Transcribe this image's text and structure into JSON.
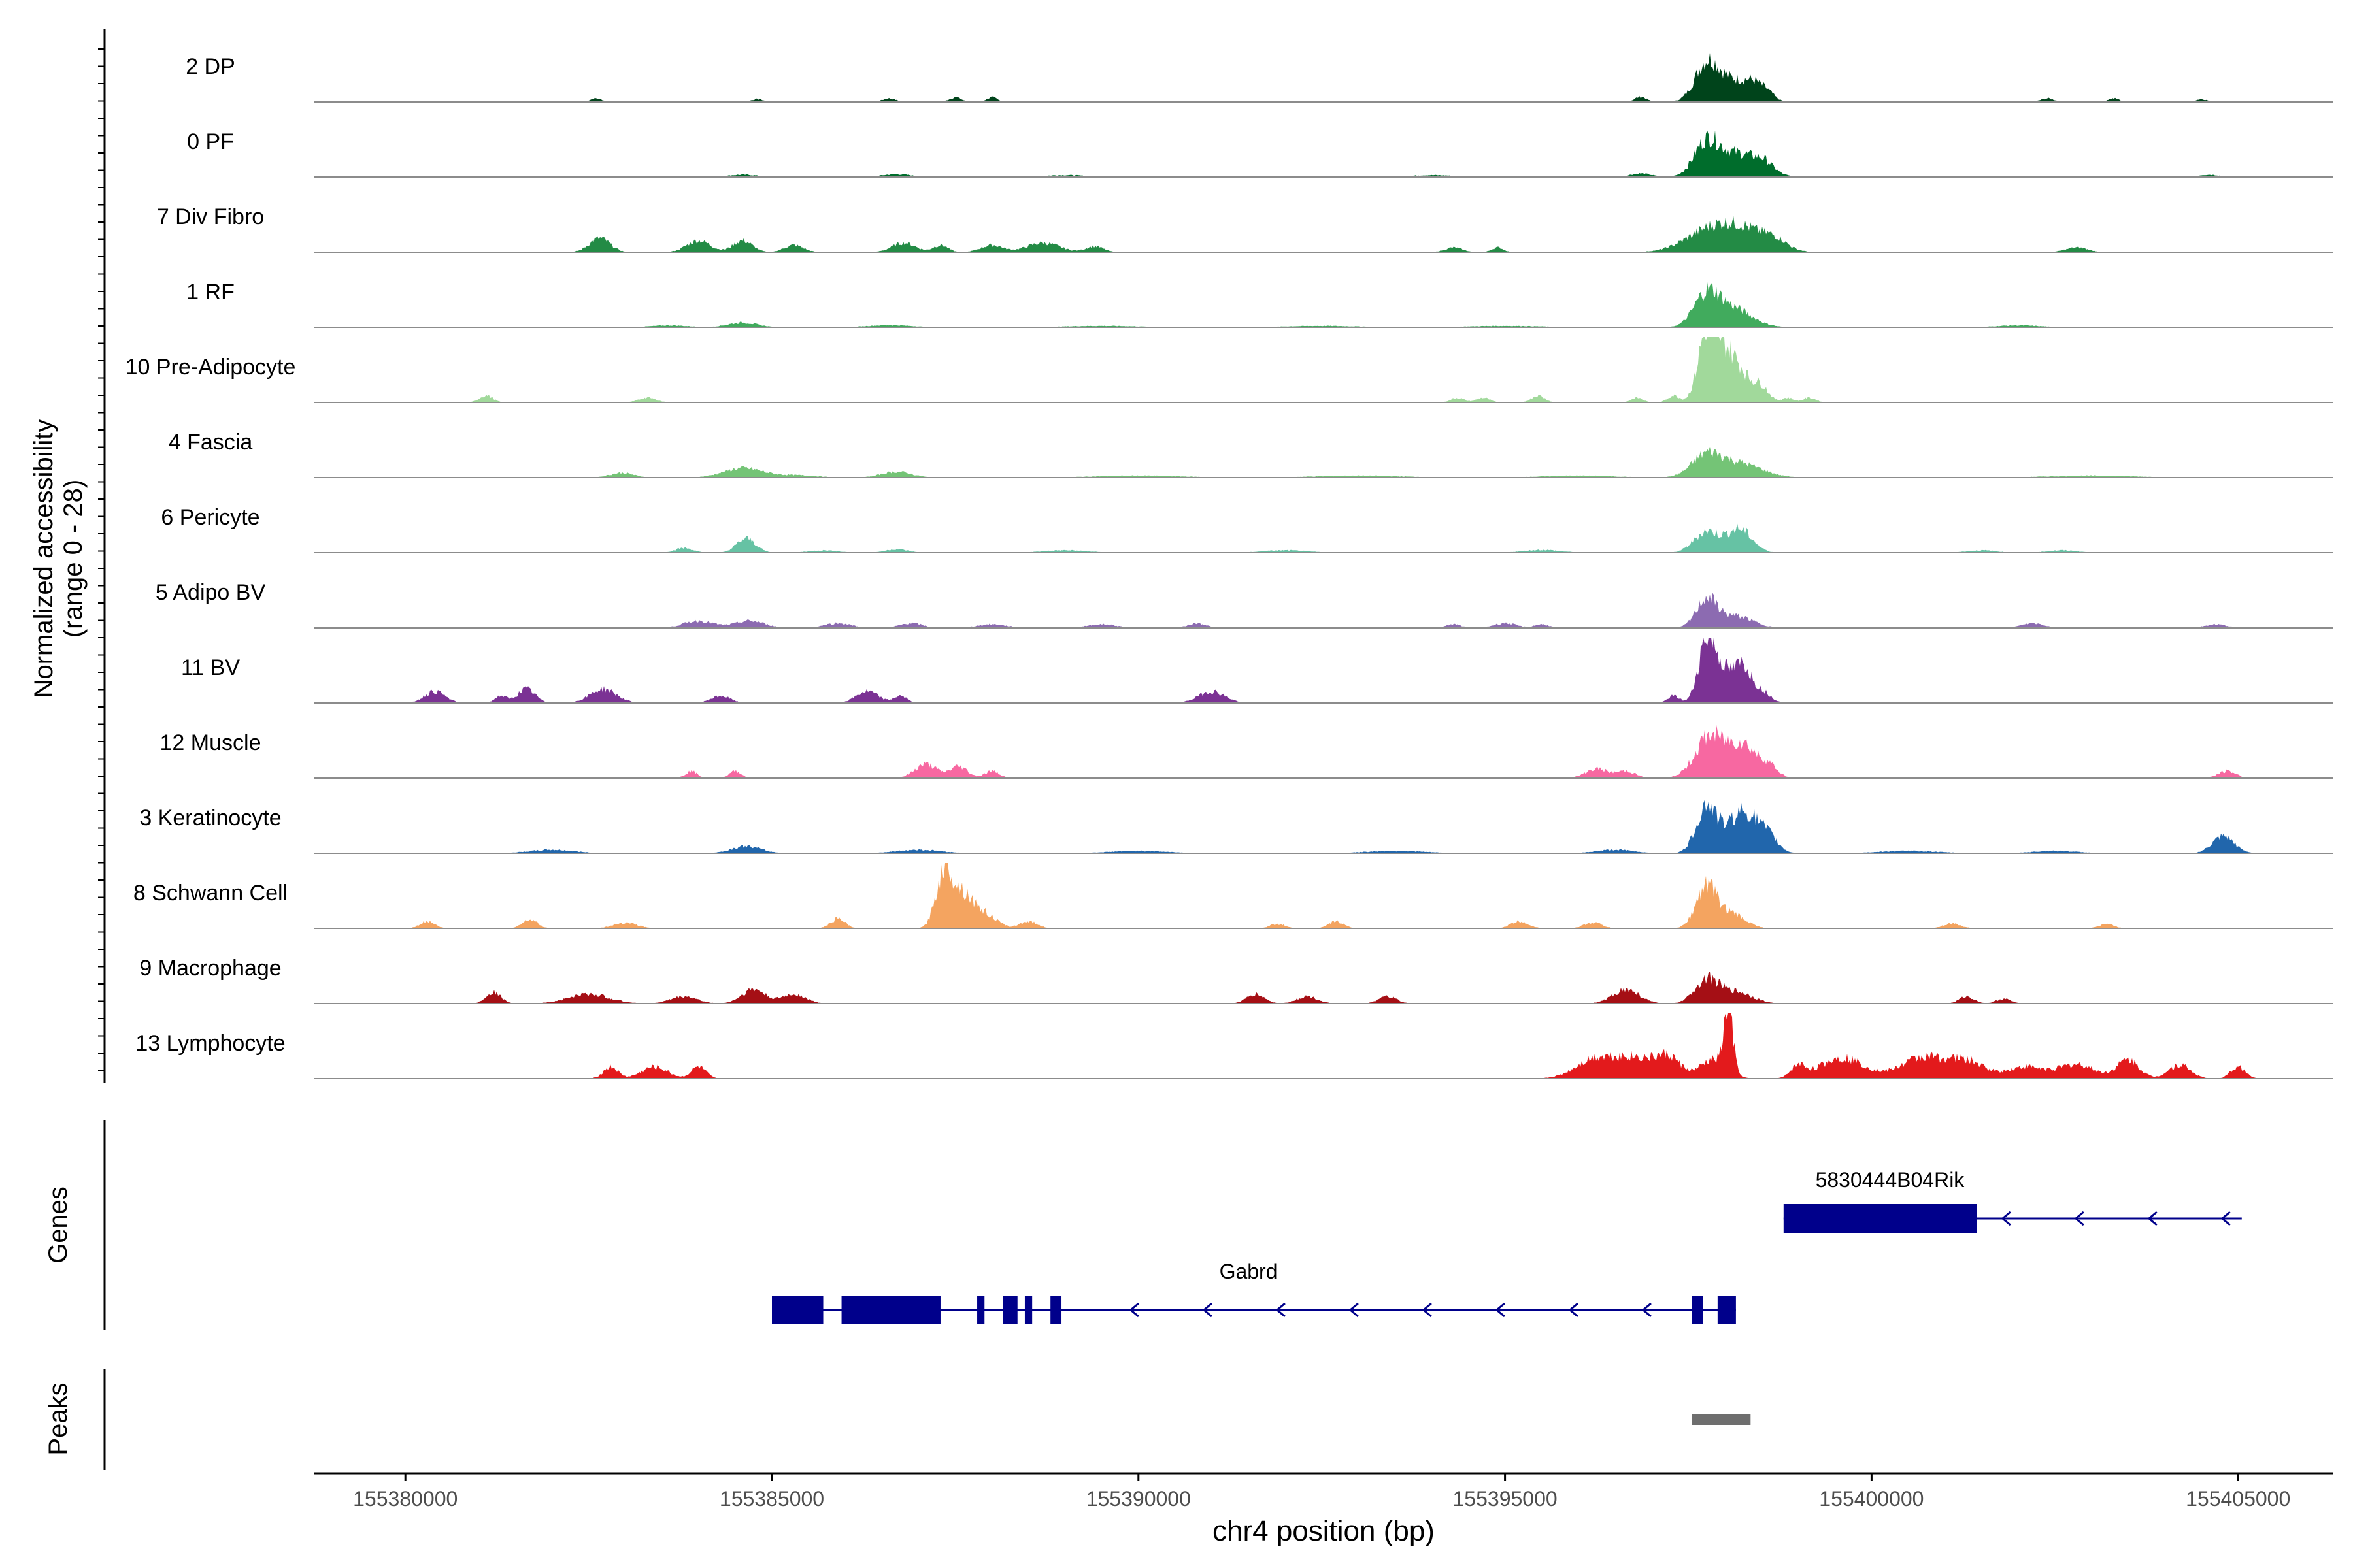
{
  "chart_data": {
    "type": "area",
    "title": "",
    "ylabel": "Normalized accessibility",
    "ylabel_sub": "(range 0 - 28)",
    "xlabel": "chr4 position (bp)",
    "xlim": [
      155378750,
      155406300
    ],
    "ylim": [
      0,
      28
    ],
    "x_ticks": [
      "155380000",
      "155385000",
      "155390000",
      "155395000",
      "155400000",
      "155405000"
    ],
    "x_tick_values": [
      155380000,
      155385000,
      155390000,
      155395000,
      155400000,
      155405000
    ],
    "tracks": [
      {
        "name": "2 DP",
        "color": "#00441b",
        "peaks": [
          [
            155397750,
            15,
            160
          ],
          [
            155398130,
            9,
            260
          ],
          [
            155398420,
            4,
            120
          ],
          [
            155398600,
            2,
            80
          ],
          [
            155382600,
            1.5,
            80
          ],
          [
            155384800,
            1.2,
            80
          ],
          [
            155386600,
            1.5,
            90
          ],
          [
            155387500,
            2,
            80
          ],
          [
            155388000,
            2,
            70
          ],
          [
            155396850,
            2.2,
            80
          ],
          [
            155402400,
            1.5,
            90
          ],
          [
            155403300,
            1.5,
            80
          ],
          [
            155404500,
            1.2,
            80
          ]
        ]
      },
      {
        "name": "0 PF",
        "color": "#006d2c",
        "peaks": [
          [
            155397750,
            14,
            170
          ],
          [
            155398200,
            10,
            280
          ],
          [
            155398550,
            3,
            120
          ],
          [
            155384600,
            1,
            200
          ],
          [
            155386700,
            1.2,
            200
          ],
          [
            155389000,
            0.8,
            300
          ],
          [
            155394000,
            0.8,
            300
          ],
          [
            155396850,
            1.5,
            150
          ],
          [
            155404600,
            1,
            150
          ]
        ]
      },
      {
        "name": "7 Div Fibro",
        "color": "#238b45",
        "peaks": [
          [
            155382650,
            6,
            140
          ],
          [
            155384000,
            5,
            160
          ],
          [
            155384600,
            5,
            130
          ],
          [
            155385300,
            3,
            130
          ],
          [
            155386800,
            4,
            160
          ],
          [
            155387300,
            3,
            100
          ],
          [
            155388000,
            3,
            150
          ],
          [
            155388700,
            4,
            220
          ],
          [
            155389400,
            2.5,
            120
          ],
          [
            155394300,
            2,
            120
          ],
          [
            155394900,
            2,
            80
          ],
          [
            155397800,
            9,
            340
          ],
          [
            155398300,
            8,
            320
          ],
          [
            155398700,
            3,
            150
          ],
          [
            155402800,
            2,
            150
          ]
        ]
      },
      {
        "name": "1 RF",
        "color": "#41ab5d",
        "peaks": [
          [
            155397750,
            13,
            170
          ],
          [
            155398100,
            8,
            260
          ],
          [
            155384600,
            2,
            200
          ],
          [
            155383600,
            0.8,
            250
          ],
          [
            155386600,
            0.9,
            300
          ],
          [
            155389500,
            0.6,
            500
          ],
          [
            155392500,
            0.6,
            500
          ],
          [
            155395000,
            0.6,
            500
          ],
          [
            155402000,
            0.8,
            300
          ]
        ]
      },
      {
        "name": "10 Pre-Adipocyte",
        "color": "#a1d99b",
        "peaks": [
          [
            155397750,
            26,
            120
          ],
          [
            155397950,
            18,
            150
          ],
          [
            155398200,
            12,
            160
          ],
          [
            155398500,
            6,
            100
          ],
          [
            155381100,
            3,
            90
          ],
          [
            155383300,
            2,
            120
          ],
          [
            155394350,
            2,
            90
          ],
          [
            155394700,
            2,
            90
          ],
          [
            155395450,
            3,
            90
          ],
          [
            155396800,
            2,
            80
          ],
          [
            155397300,
            3,
            80
          ],
          [
            155398850,
            2,
            80
          ],
          [
            155399150,
            2,
            90
          ]
        ]
      },
      {
        "name": "4 Fascia",
        "color": "#74c476",
        "peaks": [
          [
            155397750,
            9,
            200
          ],
          [
            155398200,
            6,
            300
          ],
          [
            155384600,
            4,
            260
          ],
          [
            155382950,
            2,
            160
          ],
          [
            155386700,
            2.5,
            200
          ],
          [
            155385300,
            1,
            300
          ],
          [
            155390000,
            0.8,
            600
          ],
          [
            155393000,
            0.8,
            600
          ],
          [
            155396000,
            0.8,
            500
          ],
          [
            155403000,
            0.8,
            600
          ]
        ]
      },
      {
        "name": "6 Pericyte",
        "color": "#66c2a4",
        "peaks": [
          [
            155397750,
            9,
            170
          ],
          [
            155398200,
            10,
            170
          ],
          [
            155384650,
            6,
            130
          ],
          [
            155383800,
            2,
            120
          ],
          [
            155386700,
            1.5,
            150
          ],
          [
            155385700,
            1,
            200
          ],
          [
            155389000,
            1,
            300
          ],
          [
            155392000,
            1,
            300
          ],
          [
            155395500,
            1.2,
            250
          ],
          [
            155401500,
            1,
            200
          ],
          [
            155402600,
            1,
            200
          ]
        ]
      },
      {
        "name": "5 Adipo BV",
        "color": "#8c6bb1",
        "peaks": [
          [
            155397750,
            12,
            140
          ],
          [
            155398150,
            5,
            230
          ],
          [
            155384000,
            3,
            200
          ],
          [
            155384700,
            3,
            200
          ],
          [
            155385900,
            2,
            180
          ],
          [
            155386900,
            2,
            150
          ],
          [
            155388000,
            1.5,
            200
          ],
          [
            155389500,
            1.5,
            200
          ],
          [
            155390800,
            2,
            120
          ],
          [
            155394300,
            1.5,
            100
          ],
          [
            155395000,
            2,
            150
          ],
          [
            155395500,
            1.5,
            100
          ],
          [
            155402200,
            2,
            150
          ],
          [
            155404700,
            1.5,
            150
          ]
        ]
      },
      {
        "name": "11 BV",
        "color": "#7b3294",
        "peaks": [
          [
            155397750,
            27,
            110
          ],
          [
            155397980,
            13,
            130
          ],
          [
            155398250,
            15,
            110
          ],
          [
            155398500,
            5,
            120
          ],
          [
            155397300,
            3,
            80
          ],
          [
            155380400,
            5,
            140
          ],
          [
            155381300,
            3,
            80
          ],
          [
            155381650,
            6,
            120
          ],
          [
            155382700,
            6,
            180
          ],
          [
            155384300,
            3,
            130
          ],
          [
            155386300,
            5,
            150
          ],
          [
            155386750,
            3,
            90
          ],
          [
            155391000,
            5,
            180
          ]
        ]
      },
      {
        "name": "12 Muscle",
        "color": "#f768a1",
        "peaks": [
          [
            155397800,
            18,
            200
          ],
          [
            155398250,
            14,
            180
          ],
          [
            155398600,
            5,
            120
          ],
          [
            155383900,
            3,
            80
          ],
          [
            155384500,
            3,
            80
          ],
          [
            155387100,
            6,
            150
          ],
          [
            155387550,
            5,
            120
          ],
          [
            155388000,
            3,
            100
          ],
          [
            155396250,
            4,
            150
          ],
          [
            155396650,
            3,
            130
          ],
          [
            155404850,
            3,
            120
          ]
        ]
      },
      {
        "name": "3 Keratinocyte",
        "color": "#2166ac",
        "peaks": [
          [
            155397750,
            20,
            140
          ],
          [
            155398250,
            18,
            210
          ],
          [
            155398600,
            5,
            130
          ],
          [
            155404800,
            7,
            150
          ],
          [
            155384650,
            3,
            200
          ],
          [
            155382000,
            1.5,
            300
          ],
          [
            155387000,
            1.5,
            300
          ],
          [
            155390000,
            1,
            400
          ],
          [
            155393500,
            1,
            400
          ],
          [
            155396500,
            1.5,
            250
          ],
          [
            155400500,
            1,
            400
          ],
          [
            155402500,
            1,
            300
          ]
        ]
      },
      {
        "name": "8 Schwann Cell",
        "color": "#f4a460",
        "peaks": [
          [
            155387350,
            24,
            110
          ],
          [
            155387600,
            14,
            140
          ],
          [
            155387900,
            6,
            160
          ],
          [
            155397750,
            18,
            140
          ],
          [
            155398100,
            6,
            180
          ],
          [
            155380300,
            3,
            100
          ],
          [
            155381700,
            4,
            100
          ],
          [
            155383000,
            2.5,
            160
          ],
          [
            155385900,
            4,
            100
          ],
          [
            155388500,
            3,
            120
          ],
          [
            155391900,
            2,
            100
          ],
          [
            155392700,
            3,
            100
          ],
          [
            155395200,
            3,
            120
          ],
          [
            155396200,
            2.5,
            120
          ],
          [
            155401100,
            2,
            120
          ],
          [
            155403200,
            2,
            100
          ]
        ]
      },
      {
        "name": "9 Macrophage",
        "color": "#a50f15",
        "peaks": [
          [
            155381200,
            5,
            100
          ],
          [
            155382500,
            4,
            280
          ],
          [
            155383800,
            3,
            180
          ],
          [
            155384750,
            6,
            160
          ],
          [
            155385300,
            4,
            160
          ],
          [
            155391600,
            4,
            120
          ],
          [
            155392300,
            3,
            140
          ],
          [
            155393400,
            3,
            120
          ],
          [
            155396650,
            6,
            180
          ],
          [
            155397750,
            10,
            160
          ],
          [
            155398150,
            5,
            220
          ],
          [
            155401300,
            3,
            100
          ],
          [
            155401800,
            2,
            100
          ]
        ]
      },
      {
        "name": "13 Lymphocyte",
        "color": "#e31a1c",
        "peaks": [
          [
            155382800,
            5,
            100
          ],
          [
            155383400,
            5,
            180
          ],
          [
            155384000,
            5,
            100
          ],
          [
            155396200,
            7,
            260
          ],
          [
            155396800,
            9,
            350
          ],
          [
            155397250,
            6,
            150
          ],
          [
            155397850,
            8,
            180
          ],
          [
            155398050,
            26,
            60
          ],
          [
            155399000,
            5,
            100
          ],
          [
            155399600,
            9,
            300
          ],
          [
            155400700,
            9,
            300
          ],
          [
            155401300,
            7,
            250
          ],
          [
            155402100,
            5,
            250
          ],
          [
            155402800,
            6,
            250
          ],
          [
            155403500,
            8,
            150
          ],
          [
            155404200,
            6,
            150
          ],
          [
            155405000,
            5,
            100
          ]
        ]
      }
    ],
    "genes": [
      {
        "name": "5830444B04Rik",
        "start": 155398800,
        "end": 155405050,
        "strand": "-",
        "exons": [
          [
            155398800,
            155401440
          ]
        ]
      },
      {
        "name": "Gabrd",
        "start": 155385000,
        "end": 155398150,
        "strand": "-",
        "exons": [
          [
            155385000,
            155385700
          ],
          [
            155385950,
            155387300
          ],
          [
            155387800,
            155387900
          ],
          [
            155388150,
            155388350
          ],
          [
            155388450,
            155388550
          ],
          [
            155388800,
            155388950
          ],
          [
            155397550,
            155397700
          ],
          [
            155397900,
            155398150
          ]
        ]
      }
    ],
    "peak_regions": [
      [
        155397550,
        155398350
      ]
    ],
    "panel_labels": {
      "genes": "Genes",
      "peaks": "Peaks"
    }
  }
}
